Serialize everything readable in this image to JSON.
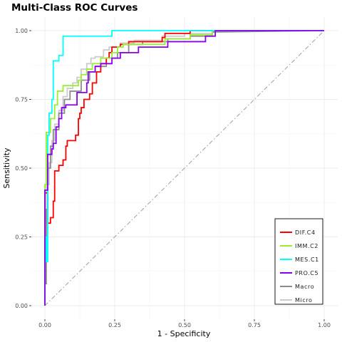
{
  "chart_data": {
    "type": "line",
    "title": "Multi-Class ROC Curves",
    "xlabel": "1 - Specificity",
    "ylabel": "Sensitivity",
    "xlim": [
      0,
      1
    ],
    "ylim": [
      0,
      1
    ],
    "x_ticks": [
      0,
      0.25,
      0.5,
      0.75,
      1
    ],
    "y_ticks": [
      0,
      0.25,
      0.5,
      0.75,
      1
    ],
    "x_tick_labels": [
      "0.00",
      "0.25",
      "0.50",
      "0.75",
      "1.00"
    ],
    "y_tick_labels": [
      "0.00",
      "0.25",
      "0.50",
      "0.75",
      "1.00"
    ],
    "grid": true,
    "legend_position": "bottom-right",
    "diagonal": {
      "color": "#a6a6a6",
      "style": "dashdot",
      "points": [
        [
          0,
          0
        ],
        [
          1,
          1
        ]
      ]
    },
    "series": [
      {
        "name": "DIF.C4",
        "color": "#ff0000",
        "points": [
          [
            0,
            0
          ],
          [
            0,
            0.41
          ],
          [
            0.01,
            0.41
          ],
          [
            0.01,
            0.3
          ],
          [
            0.02,
            0.3
          ],
          [
            0.02,
            0.32
          ],
          [
            0.03,
            0.32
          ],
          [
            0.03,
            0.38
          ],
          [
            0.035,
            0.38
          ],
          [
            0.035,
            0.49
          ],
          [
            0.05,
            0.49
          ],
          [
            0.05,
            0.51
          ],
          [
            0.065,
            0.51
          ],
          [
            0.065,
            0.53
          ],
          [
            0.075,
            0.53
          ],
          [
            0.075,
            0.58
          ],
          [
            0.08,
            0.58
          ],
          [
            0.08,
            0.6
          ],
          [
            0.11,
            0.6
          ],
          [
            0.11,
            0.62
          ],
          [
            0.12,
            0.62
          ],
          [
            0.12,
            0.68
          ],
          [
            0.125,
            0.68
          ],
          [
            0.125,
            0.7
          ],
          [
            0.13,
            0.7
          ],
          [
            0.13,
            0.72
          ],
          [
            0.14,
            0.72
          ],
          [
            0.14,
            0.75
          ],
          [
            0.16,
            0.75
          ],
          [
            0.16,
            0.77
          ],
          [
            0.17,
            0.77
          ],
          [
            0.17,
            0.81
          ],
          [
            0.185,
            0.81
          ],
          [
            0.185,
            0.85
          ],
          [
            0.2,
            0.85
          ],
          [
            0.2,
            0.88
          ],
          [
            0.22,
            0.88
          ],
          [
            0.22,
            0.9
          ],
          [
            0.23,
            0.9
          ],
          [
            0.23,
            0.92
          ],
          [
            0.24,
            0.92
          ],
          [
            0.24,
            0.94
          ],
          [
            0.27,
            0.94
          ],
          [
            0.27,
            0.95
          ],
          [
            0.3,
            0.95
          ],
          [
            0.3,
            0.96
          ],
          [
            0.42,
            0.96
          ],
          [
            0.42,
            0.975
          ],
          [
            0.43,
            0.975
          ],
          [
            0.43,
            0.99
          ],
          [
            0.52,
            0.99
          ],
          [
            0.52,
            1.0
          ],
          [
            1,
            1
          ]
        ]
      },
      {
        "name": "IMM.C2",
        "color": "#99ee33",
        "points": [
          [
            0,
            0
          ],
          [
            0,
            0.44
          ],
          [
            0.005,
            0.44
          ],
          [
            0.005,
            0.63
          ],
          [
            0.02,
            0.63
          ],
          [
            0.02,
            0.68
          ],
          [
            0.035,
            0.68
          ],
          [
            0.035,
            0.73
          ],
          [
            0.045,
            0.73
          ],
          [
            0.045,
            0.78
          ],
          [
            0.065,
            0.78
          ],
          [
            0.065,
            0.8
          ],
          [
            0.12,
            0.8
          ],
          [
            0.12,
            0.82
          ],
          [
            0.13,
            0.82
          ],
          [
            0.13,
            0.84
          ],
          [
            0.15,
            0.84
          ],
          [
            0.15,
            0.86
          ],
          [
            0.17,
            0.86
          ],
          [
            0.17,
            0.88
          ],
          [
            0.2,
            0.88
          ],
          [
            0.2,
            0.9
          ],
          [
            0.24,
            0.9
          ],
          [
            0.24,
            0.92
          ],
          [
            0.26,
            0.92
          ],
          [
            0.26,
            0.94
          ],
          [
            0.28,
            0.94
          ],
          [
            0.28,
            0.95
          ],
          [
            0.43,
            0.95
          ],
          [
            0.43,
            0.97
          ],
          [
            0.52,
            0.97
          ],
          [
            0.52,
            0.985
          ],
          [
            0.6,
            0.985
          ],
          [
            0.6,
            1.0
          ],
          [
            1,
            1
          ]
        ]
      },
      {
        "name": "MES.C1",
        "color": "#00ffff",
        "points": [
          [
            0,
            0
          ],
          [
            0,
            0.25
          ],
          [
            0.005,
            0.25
          ],
          [
            0.005,
            0.16
          ],
          [
            0.01,
            0.16
          ],
          [
            0.01,
            0.62
          ],
          [
            0.015,
            0.62
          ],
          [
            0.015,
            0.7
          ],
          [
            0.025,
            0.7
          ],
          [
            0.025,
            0.75
          ],
          [
            0.03,
            0.75
          ],
          [
            0.03,
            0.89
          ],
          [
            0.05,
            0.89
          ],
          [
            0.05,
            0.91
          ],
          [
            0.065,
            0.91
          ],
          [
            0.065,
            0.98
          ],
          [
            0.24,
            0.98
          ],
          [
            0.24,
            1.0
          ],
          [
            1,
            1
          ]
        ]
      },
      {
        "name": "PRO.C5",
        "color": "#8800ee",
        "points": [
          [
            0,
            0
          ],
          [
            0,
            0.42
          ],
          [
            0.01,
            0.42
          ],
          [
            0.01,
            0.55
          ],
          [
            0.025,
            0.55
          ],
          [
            0.025,
            0.57
          ],
          [
            0.03,
            0.57
          ],
          [
            0.03,
            0.59
          ],
          [
            0.04,
            0.59
          ],
          [
            0.04,
            0.65
          ],
          [
            0.05,
            0.65
          ],
          [
            0.05,
            0.68
          ],
          [
            0.06,
            0.68
          ],
          [
            0.06,
            0.72
          ],
          [
            0.075,
            0.72
          ],
          [
            0.075,
            0.73
          ],
          [
            0.115,
            0.73
          ],
          [
            0.115,
            0.775
          ],
          [
            0.15,
            0.775
          ],
          [
            0.15,
            0.81
          ],
          [
            0.155,
            0.81
          ],
          [
            0.155,
            0.85
          ],
          [
            0.18,
            0.85
          ],
          [
            0.18,
            0.87
          ],
          [
            0.2,
            0.87
          ],
          [
            0.2,
            0.88
          ],
          [
            0.24,
            0.88
          ],
          [
            0.24,
            0.9
          ],
          [
            0.27,
            0.9
          ],
          [
            0.27,
            0.92
          ],
          [
            0.335,
            0.92
          ],
          [
            0.335,
            0.94
          ],
          [
            0.44,
            0.94
          ],
          [
            0.44,
            0.96
          ],
          [
            0.575,
            0.96
          ],
          [
            0.575,
            0.98
          ],
          [
            0.61,
            0.98
          ],
          [
            0.61,
            1.0
          ],
          [
            1,
            1
          ]
        ]
      },
      {
        "name": "Macro",
        "color": "#8c8c8c",
        "points": [
          [
            0,
            0
          ],
          [
            0,
            0.08
          ],
          [
            0.005,
            0.08
          ],
          [
            0.005,
            0.35
          ],
          [
            0.01,
            0.35
          ],
          [
            0.01,
            0.5
          ],
          [
            0.02,
            0.5
          ],
          [
            0.02,
            0.58
          ],
          [
            0.03,
            0.58
          ],
          [
            0.03,
            0.64
          ],
          [
            0.05,
            0.64
          ],
          [
            0.05,
            0.7
          ],
          [
            0.07,
            0.7
          ],
          [
            0.07,
            0.75
          ],
          [
            0.09,
            0.75
          ],
          [
            0.09,
            0.78
          ],
          [
            0.13,
            0.78
          ],
          [
            0.13,
            0.82
          ],
          [
            0.16,
            0.82
          ],
          [
            0.16,
            0.85
          ],
          [
            0.18,
            0.85
          ],
          [
            0.18,
            0.87
          ],
          [
            0.22,
            0.87
          ],
          [
            0.22,
            0.9
          ],
          [
            0.26,
            0.9
          ],
          [
            0.26,
            0.92
          ],
          [
            0.3,
            0.92
          ],
          [
            0.3,
            0.95
          ],
          [
            0.35,
            0.95
          ],
          [
            0.35,
            0.96
          ],
          [
            0.44,
            0.96
          ],
          [
            0.44,
            0.97
          ],
          [
            0.52,
            0.97
          ],
          [
            0.52,
            0.98
          ],
          [
            0.6,
            0.98
          ],
          [
            0.6,
            0.995
          ],
          [
            1,
            1
          ]
        ]
      },
      {
        "name": "Micro",
        "color": "#cccccc",
        "points": [
          [
            0,
            0
          ],
          [
            0,
            0.3
          ],
          [
            0.005,
            0.3
          ],
          [
            0.005,
            0.44
          ],
          [
            0.015,
            0.44
          ],
          [
            0.015,
            0.52
          ],
          [
            0.025,
            0.52
          ],
          [
            0.025,
            0.6
          ],
          [
            0.035,
            0.6
          ],
          [
            0.035,
            0.66
          ],
          [
            0.05,
            0.66
          ],
          [
            0.05,
            0.71
          ],
          [
            0.065,
            0.71
          ],
          [
            0.065,
            0.76
          ],
          [
            0.08,
            0.76
          ],
          [
            0.08,
            0.79
          ],
          [
            0.1,
            0.79
          ],
          [
            0.1,
            0.81
          ],
          [
            0.115,
            0.81
          ],
          [
            0.115,
            0.83
          ],
          [
            0.13,
            0.83
          ],
          [
            0.13,
            0.86
          ],
          [
            0.15,
            0.86
          ],
          [
            0.15,
            0.88
          ],
          [
            0.165,
            0.88
          ],
          [
            0.165,
            0.9
          ],
          [
            0.18,
            0.9
          ],
          [
            0.18,
            0.905
          ],
          [
            0.21,
            0.905
          ],
          [
            0.21,
            0.93
          ],
          [
            0.23,
            0.93
          ],
          [
            0.23,
            0.94
          ],
          [
            0.27,
            0.94
          ],
          [
            0.27,
            0.955
          ],
          [
            0.32,
            0.955
          ],
          [
            0.32,
            0.965
          ],
          [
            0.42,
            0.965
          ],
          [
            0.42,
            0.98
          ],
          [
            0.5,
            0.98
          ],
          [
            0.5,
            0.99
          ],
          [
            0.6,
            0.99
          ],
          [
            0.6,
            0.998
          ],
          [
            1,
            1
          ]
        ]
      }
    ]
  }
}
